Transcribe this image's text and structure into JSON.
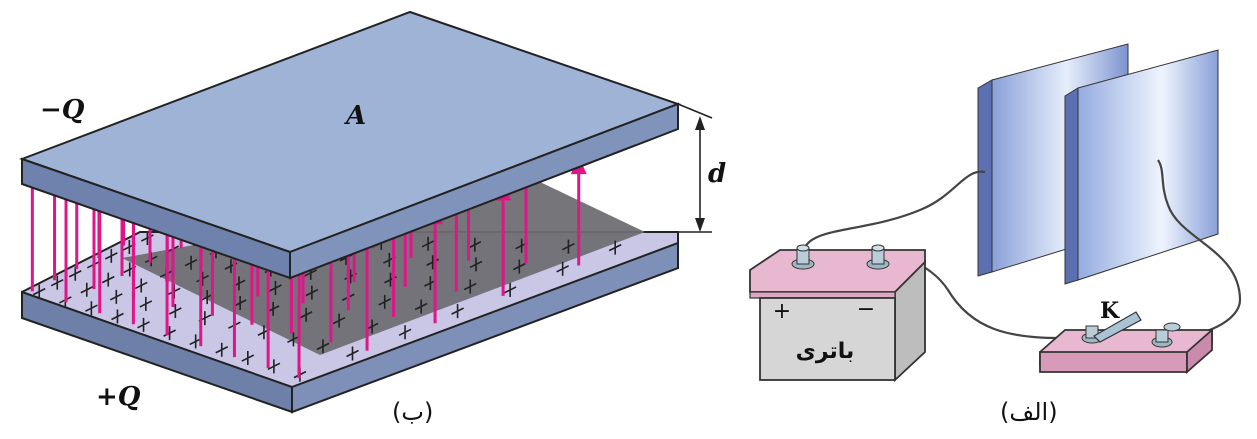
{
  "diagrams": {
    "b": {
      "caption": "(ب)",
      "top_plate_charge": "−Q",
      "bottom_plate_charge": "+Q",
      "area_label": "A",
      "separation_label": "d"
    },
    "alef": {
      "caption": "(الف)",
      "battery_label": "باتری",
      "battery_plus": "+",
      "battery_minus": "−",
      "switch_label": "K"
    }
  },
  "colors": {
    "plate_top": "#9fb3d6",
    "plate_edge": "#5f6f95",
    "lower_plate_top": "#c9c6e6",
    "shadow_region": "#6f6f73",
    "field_arrow": "#e0158a",
    "battery_top": "#e8b8d0",
    "battery_body": "#d6d6d6",
    "switch_base": "#e8b8d0",
    "metal_plate_light": "#e4ecfa",
    "metal_plate_dark": "#6f86c8",
    "wire": "#444444"
  },
  "icons": {
    "field_arrow": "arrow-up-icon",
    "terminal": "battery-terminal-icon",
    "switch": "knife-switch-icon"
  }
}
